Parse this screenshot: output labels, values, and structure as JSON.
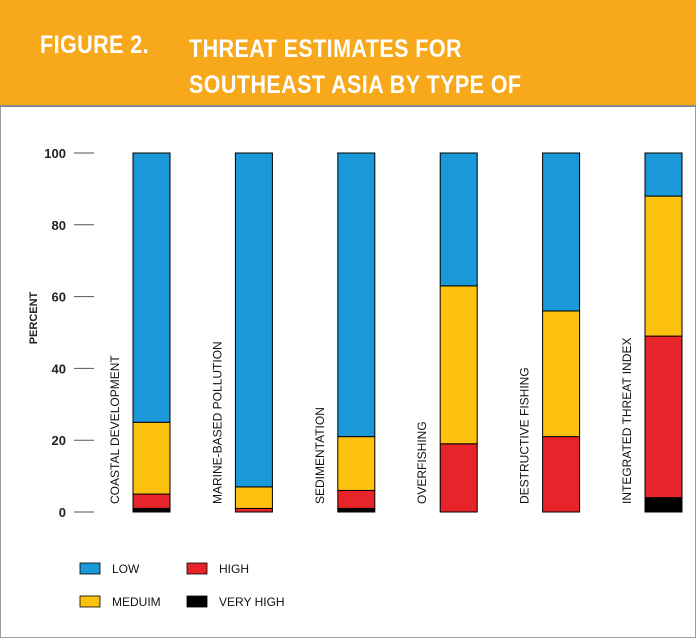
{
  "header": {
    "figure_label": "FIGURE 2.",
    "title": "THREAT ESTIMATES FOR SOUTHEAST ASIA BY TYPE OF THREAT",
    "bg_color": "#f7a81b"
  },
  "chart_data": {
    "type": "bar",
    "stacked": true,
    "title": "THREAT ESTIMATES FOR SOUTHEAST ASIA BY TYPE OF THREAT",
    "xlabel": "",
    "ylabel": "PERCENT",
    "ylim": [
      0,
      100
    ],
    "yticks": [
      0,
      20,
      40,
      60,
      80,
      100
    ],
    "grid": false,
    "legend_position": "bottom-left",
    "categories": [
      "COASTAL DEVELOPMENT",
      "MARINE-BASED POLLUTION",
      "SEDIMENTATION",
      "OVERFISHING",
      "DESTRUCTIVE FISHING",
      "INTEGRATED THREAT INDEX"
    ],
    "series": [
      {
        "name": "VERY HIGH",
        "color": "#000000",
        "values": [
          1,
          0,
          1,
          0,
          0,
          4
        ]
      },
      {
        "name": "HIGH",
        "color": "#e8242b",
        "values": [
          4,
          1,
          5,
          19,
          21,
          45
        ]
      },
      {
        "name": "MEDUIM",
        "color": "#fcc20f",
        "values": [
          20,
          6,
          15,
          44,
          35,
          39
        ]
      },
      {
        "name": "LOW",
        "color": "#1b98d8",
        "values": [
          75,
          93,
          79,
          37,
          44,
          12
        ]
      }
    ],
    "legend_order": [
      "LOW",
      "HIGH",
      "MEDUIM",
      "VERY HIGH"
    ]
  }
}
